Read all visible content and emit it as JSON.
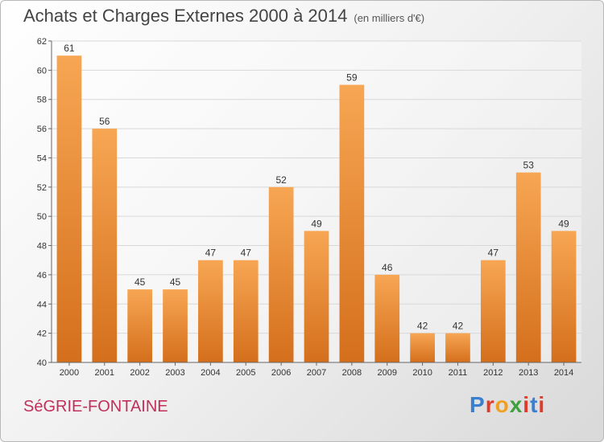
{
  "header": {
    "title": "Achats et Charges Externes 2000 à 2014",
    "subtitle": "(en milliers d'€)"
  },
  "footer": {
    "town": "SéGRIE-FONTAINE",
    "brand": "Proxiti",
    "brand_colors": [
      "#3a7fd0",
      "#e03a2a",
      "#f0a020",
      "#40a040",
      "#e03a2a",
      "#3a7fd0",
      "#e03a2a"
    ]
  },
  "colors": {
    "bar_top": "#f7a653",
    "bar_bottom": "#d46f1c",
    "grid": "#d8d8d8",
    "axis": "#666666"
  },
  "chart_data": {
    "type": "bar",
    "categories": [
      "2000",
      "2001",
      "2002",
      "2003",
      "2004",
      "2005",
      "2006",
      "2007",
      "2008",
      "2009",
      "2010",
      "2011",
      "2012",
      "2013",
      "2014"
    ],
    "values": [
      61,
      56,
      45,
      45,
      47,
      47,
      52,
      49,
      59,
      46,
      42,
      42,
      47,
      53,
      49
    ],
    "ylim": [
      40,
      62
    ],
    "yticks": [
      40,
      42,
      44,
      46,
      48,
      50,
      52,
      54,
      56,
      58,
      60,
      62
    ],
    "grid": true
  }
}
